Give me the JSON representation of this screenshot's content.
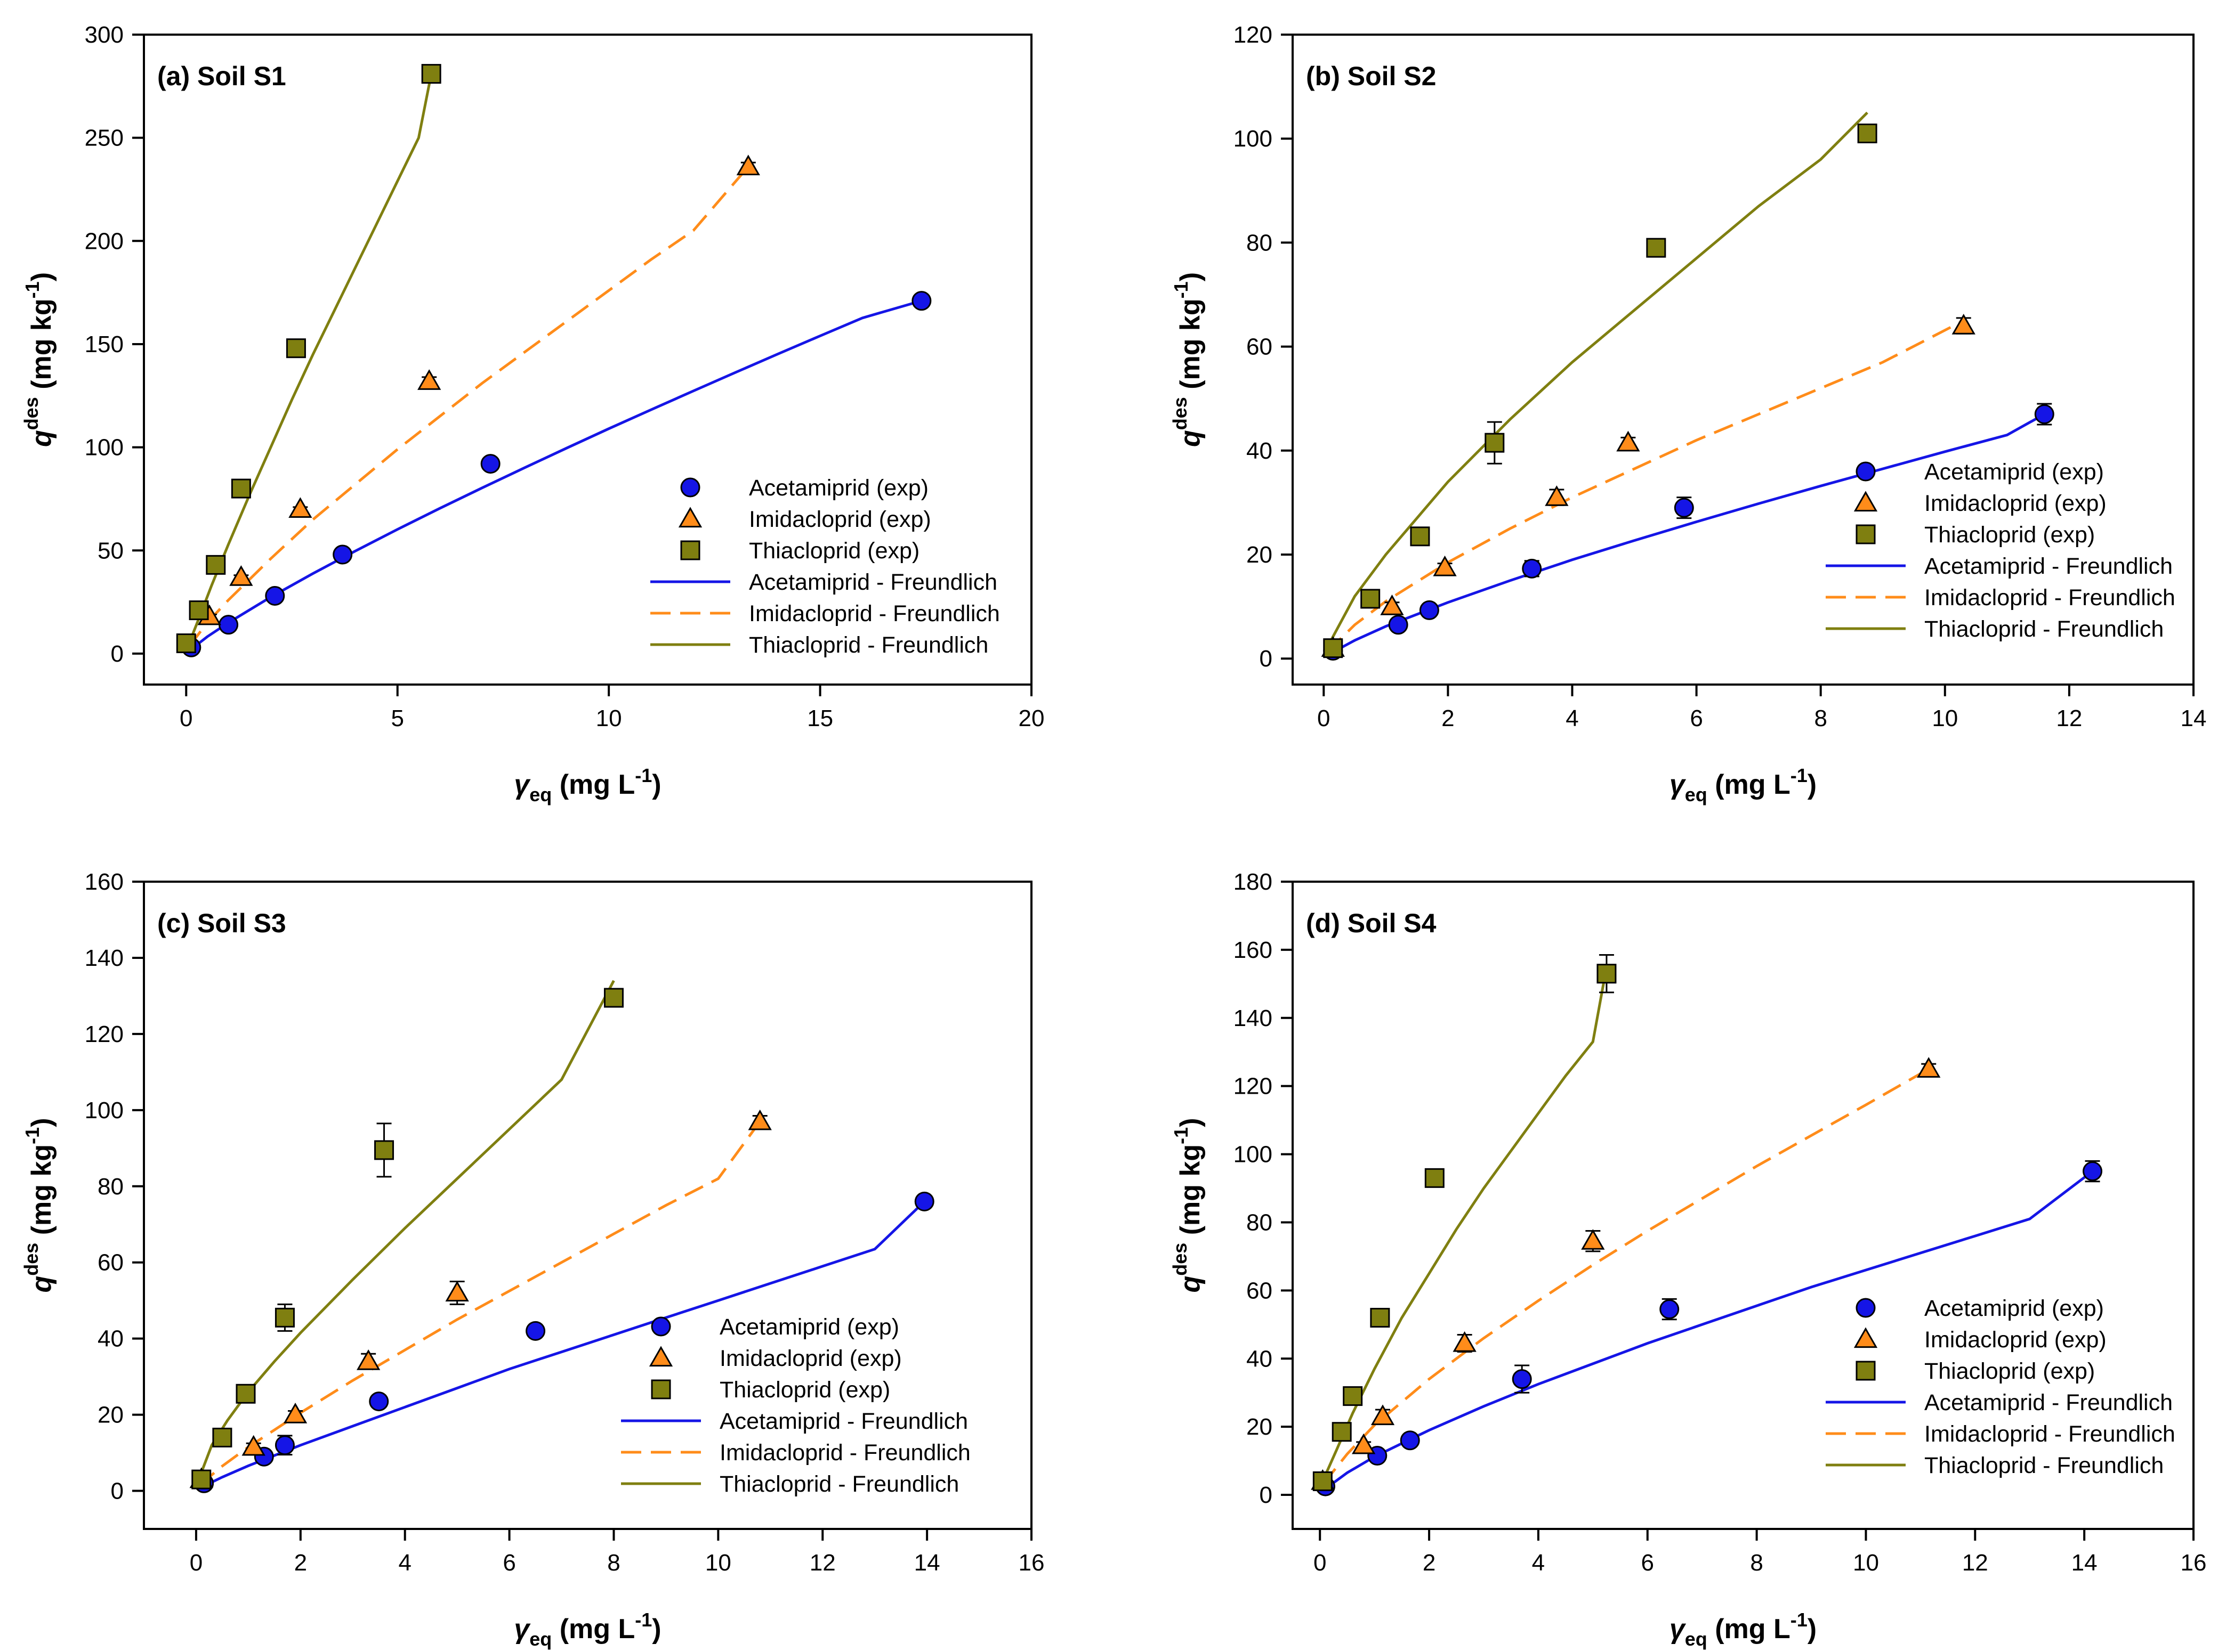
{
  "colors": {
    "acetamiprid": "#1515e6",
    "imidacloprid": "#ff8c1a",
    "thiacloprid": "#7f7f10"
  },
  "legend": {
    "labels": [
      "Acetamiprid (exp)",
      "Imidacloprid (exp)",
      "Thiacloprid (exp)",
      "Acetamiprid - Freundlich",
      "Imidacloprid  - Freundlich",
      "Thiacloprid - Freundlich"
    ],
    "labels_alt": [
      "Acetamiprid (exp)",
      "Imidacloprid (exp)",
      "Thiacloprid (exp)",
      "Acetamiprid - Freundlich",
      "Imidacloprid - Freundlich",
      "Thiacloprid - Freundlich"
    ]
  },
  "axis_titles": {
    "y_main": "q",
    "y_sup": "des",
    "y_unit": " (mg kg",
    "y_unit_sup": "-1",
    "y_close": ")",
    "x_main": "γ",
    "x_sub": "eq",
    "x_unit": " (mg L",
    "x_unit_sup": "-1",
    "x_close": ")"
  },
  "chart_data": [
    {
      "type": "scatter",
      "title": "(a) Soil S1",
      "xlabel": "γeq (mg L-1)",
      "ylabel": "qdes (mg kg-1)",
      "xlim": [
        -1,
        20
      ],
      "ylim": [
        -15,
        300
      ],
      "xticks": [
        0,
        5,
        10,
        15,
        20
      ],
      "yticks": [
        0,
        50,
        100,
        150,
        200,
        250,
        300
      ],
      "legend_position": "lower-right",
      "series": [
        {
          "name": "Acetamiprid (exp)",
          "marker": "circle",
          "x": [
            0.12,
            1.0,
            2.1,
            3.7,
            7.2,
            17.4
          ],
          "y": [
            3,
            14,
            28,
            48,
            92,
            171
          ],
          "err": [
            1,
            1,
            2,
            2,
            1,
            1
          ]
        },
        {
          "name": "Imidacloprid (exp)",
          "marker": "triangle",
          "x": [
            0.55,
            1.3,
            2.7,
            5.75,
            13.3
          ],
          "y": [
            18,
            37,
            70,
            132,
            236
          ],
          "err": [
            1,
            1,
            1,
            2,
            2
          ]
        },
        {
          "name": "Thiacloprid (exp)",
          "marker": "square",
          "x": [
            0.0,
            0.3,
            0.7,
            1.3,
            2.6,
            5.8
          ],
          "y": [
            5,
            21,
            43,
            80,
            148,
            281
          ],
          "err": [
            1,
            1,
            1,
            3,
            3,
            3
          ]
        }
      ],
      "fits": [
        {
          "name": "Acetamiprid - Freundlich",
          "style": "solid",
          "x": [
            0.05,
            0.5,
            1,
            2,
            3,
            4,
            5,
            6,
            7,
            8,
            9,
            10,
            11,
            12,
            13,
            14,
            15,
            16,
            17.4
          ],
          "y": [
            1.0,
            8.2,
            15.0,
            27.4,
            38.8,
            49.7,
            60.2,
            70.4,
            80.3,
            90.0,
            99.6,
            109.0,
            118.2,
            127.3,
            136.3,
            145.2,
            154.0,
            162.7,
            171.0
          ]
        },
        {
          "name": "Imidacloprid  - Freundlich",
          "style": "dashed",
          "x": [
            0.05,
            0.5,
            1,
            2,
            3,
            4,
            5,
            6,
            7,
            8,
            9,
            10,
            11,
            12,
            13.3
          ],
          "y": [
            3,
            15,
            26,
            46,
            65,
            82,
            99,
            115,
            131,
            146,
            161,
            176,
            191,
            205,
            236
          ]
        },
        {
          "name": "Thiacloprid - Freundlich",
          "style": "solid",
          "x": [
            0.05,
            0.3,
            0.6,
            1,
            1.5,
            2,
            2.5,
            3,
            3.5,
            4,
            4.5,
            5,
            5.5,
            5.8
          ],
          "y": [
            4,
            17,
            33,
            53,
            77,
            100,
            123,
            145,
            166,
            187,
            208,
            229,
            250,
            281
          ]
        }
      ]
    },
    {
      "type": "scatter",
      "title": "(b) Soil S2",
      "xlabel": "γeq (mg L-1)",
      "ylabel": "qdes (mg kg-1)",
      "xlim": [
        -0.5,
        14
      ],
      "ylim": [
        -5,
        120
      ],
      "xticks": [
        0,
        2,
        4,
        6,
        8,
        10,
        12,
        14
      ],
      "yticks": [
        0,
        20,
        40,
        60,
        80,
        100,
        120
      ],
      "legend_position": "lower-right",
      "series": [
        {
          "name": "Acetamiprid (exp)",
          "marker": "circle",
          "x": [
            0.15,
            1.2,
            1.7,
            3.35,
            5.8,
            11.6
          ],
          "y": [
            1.5,
            6.5,
            9.3,
            17.3,
            29,
            47
          ],
          "err": [
            0.5,
            0.5,
            0.5,
            1.5,
            2,
            2
          ]
        },
        {
          "name": "Imidacloprid (exp)",
          "marker": "triangle",
          "x": [
            0.15,
            1.1,
            1.95,
            3.75,
            4.9,
            10.3
          ],
          "y": [
            2,
            10,
            17.5,
            31,
            41.5,
            64
          ],
          "err": [
            0.5,
            0.8,
            0.8,
            1.5,
            1,
            1.5
          ]
        },
        {
          "name": "Thiacloprid (exp)",
          "marker": "square",
          "x": [
            0.15,
            0.75,
            1.55,
            2.75,
            5.35,
            8.75
          ],
          "y": [
            2,
            11.5,
            23.5,
            41.5,
            79,
            101
          ],
          "err": [
            0.5,
            0.5,
            1,
            4,
            1,
            1.5
          ]
        }
      ],
      "fits": [
        {
          "name": "Acetamiprid - Freundlich",
          "style": "solid",
          "x": [
            0.05,
            0.5,
            1,
            2,
            3,
            4,
            5,
            6,
            7,
            8,
            9,
            10,
            11,
            11.6
          ],
          "y": [
            0.6,
            3.5,
            6.2,
            10.8,
            15.0,
            19.0,
            22.7,
            26.3,
            29.8,
            33.2,
            36.5,
            39.8,
            43.0,
            47.0
          ]
        },
        {
          "name": "Imidacloprid  - Freundlich",
          "style": "dashed",
          "x": [
            0.05,
            0.5,
            1,
            2,
            3,
            4,
            5,
            6,
            7,
            8,
            9,
            10.3
          ],
          "y": [
            1.2,
            6.5,
            11,
            18.5,
            25,
            31,
            36.5,
            42,
            47,
            52,
            57,
            65
          ]
        },
        {
          "name": "Thiacloprid - Freundlich",
          "style": "solid",
          "x": [
            0.05,
            0.5,
            1,
            1.5,
            2,
            3,
            4,
            5,
            6,
            7,
            8,
            8.75
          ],
          "y": [
            2,
            12,
            20,
            27,
            34,
            46,
            57,
            67,
            77,
            87,
            96,
            105
          ]
        }
      ]
    },
    {
      "type": "scatter",
      "title": "(c) Soil S3",
      "xlabel": "γeq (mg L-1)",
      "ylabel": "qdes (mg kg-1)",
      "xlim": [
        -1,
        16
      ],
      "ylim": [
        -10,
        160
      ],
      "xticks": [
        0,
        2,
        4,
        6,
        8,
        10,
        12,
        14,
        16
      ],
      "yticks": [
        0,
        20,
        40,
        60,
        80,
        100,
        120,
        140,
        160
      ],
      "legend_position": "lower-right",
      "series": [
        {
          "name": "Acetamiprid (exp)",
          "marker": "circle",
          "x": [
            0.15,
            1.3,
            1.7,
            3.5,
            6.5,
            13.95
          ],
          "y": [
            2,
            9,
            12,
            23.5,
            42,
            76
          ],
          "err": [
            0.5,
            1,
            2.5,
            1.5,
            1,
            1.5
          ]
        },
        {
          "name": "Imidacloprid (exp)",
          "marker": "triangle",
          "x": [
            0.1,
            1.1,
            1.9,
            3.3,
            5.0,
            10.8
          ],
          "y": [
            3,
            11.5,
            20,
            34,
            52,
            97
          ],
          "err": [
            0.5,
            1,
            1,
            2,
            3,
            1.5
          ]
        },
        {
          "name": "Thiacloprid (exp)",
          "marker": "square",
          "x": [
            0.1,
            0.5,
            0.95,
            1.7,
            3.6,
            8.0
          ],
          "y": [
            3,
            14,
            25.5,
            45.5,
            89.5,
            129.5
          ],
          "err": [
            0.5,
            1,
            1,
            3.5,
            7,
            1.5
          ]
        }
      ],
      "fits": [
        {
          "name": "Acetamiprid - Freundlich",
          "style": "solid",
          "x": [
            0.05,
            0.5,
            1,
            2,
            3,
            4,
            5,
            6,
            7,
            8,
            9,
            10,
            11,
            12,
            13,
            13.95
          ],
          "y": [
            0.6,
            3.6,
            6.6,
            12,
            17,
            22,
            27,
            32,
            36.5,
            41,
            45.5,
            50,
            54.5,
            59,
            63.5,
            76
          ]
        },
        {
          "name": "Imidacloprid  - Freundlich",
          "style": "dashed",
          "x": [
            0.05,
            0.5,
            1,
            2,
            3,
            4,
            5,
            6,
            7,
            8,
            9,
            10,
            10.8
          ],
          "y": [
            1.3,
            6.5,
            11.5,
            20.5,
            29,
            37,
            45,
            52.5,
            60,
            67.5,
            75,
            82,
            97
          ]
        },
        {
          "name": "Thiacloprid - Freundlich",
          "style": "solid",
          "x": [
            0.05,
            0.3,
            0.6,
            1,
            1.5,
            2,
            3,
            4,
            5,
            6,
            7,
            8
          ],
          "y": [
            3,
            12,
            18.5,
            26,
            34,
            41.5,
            55.5,
            69,
            82,
            95,
            108,
            134
          ]
        }
      ]
    },
    {
      "type": "scatter",
      "title": "(d) Soil S4",
      "xlabel": "γeq (mg L-1)",
      "ylabel": "qdes (mg kg-1)",
      "xlim": [
        -0.5,
        16
      ],
      "ylim": [
        -10,
        180
      ],
      "xticks": [
        0,
        2,
        4,
        6,
        8,
        10,
        12,
        14,
        16
      ],
      "yticks": [
        0,
        20,
        40,
        60,
        80,
        100,
        120,
        140,
        160,
        180
      ],
      "legend_position": "lower-right",
      "series": [
        {
          "name": "Acetamiprid (exp)",
          "marker": "circle",
          "x": [
            0.1,
            1.05,
            1.65,
            3.7,
            6.4,
            14.15
          ],
          "y": [
            2.5,
            11.5,
            16,
            34,
            54.5,
            95
          ],
          "err": [
            0.5,
            1,
            1.5,
            4,
            3,
            3
          ]
        },
        {
          "name": "Imidacloprid (exp)",
          "marker": "triangle",
          "x": [
            0.05,
            0.8,
            1.15,
            2.65,
            5.0,
            11.15
          ],
          "y": [
            4,
            14.5,
            23,
            44.5,
            74.5,
            125
          ],
          "err": [
            0.5,
            1,
            2,
            2.5,
            3,
            1.5
          ]
        },
        {
          "name": "Thiacloprid (exp)",
          "marker": "square",
          "x": [
            0.05,
            0.4,
            0.6,
            1.1,
            2.1,
            5.25
          ],
          "y": [
            4,
            18.5,
            29,
            52,
            93,
            153
          ],
          "err": [
            0.5,
            1,
            1.5,
            2,
            2,
            5.5
          ]
        }
      ],
      "fits": [
        {
          "name": "Acetamiprid - Freundlich",
          "style": "solid",
          "x": [
            0.05,
            0.5,
            1,
            2,
            3,
            4,
            5,
            6,
            7,
            8,
            9,
            10,
            11,
            12,
            13,
            14.15
          ],
          "y": [
            1.2,
            6.5,
            11.2,
            19,
            26,
            32.5,
            38.5,
            44.5,
            50,
            55.5,
            61,
            66,
            71,
            76,
            81,
            95
          ]
        },
        {
          "name": "Imidacloprid  - Freundlich",
          "style": "dashed",
          "x": [
            0.05,
            0.5,
            1,
            2,
            3,
            4,
            5,
            6,
            7,
            8,
            9,
            10,
            11.15
          ],
          "y": [
            3,
            12,
            20.5,
            34,
            46,
            57,
            67.5,
            77.5,
            87,
            96.5,
            105.5,
            114.5,
            125
          ]
        },
        {
          "name": "Thiacloprid - Freundlich",
          "style": "solid",
          "x": [
            0.05,
            0.3,
            0.6,
            1,
            1.5,
            2,
            2.5,
            3,
            3.5,
            4,
            4.5,
            5,
            5.25
          ],
          "y": [
            4,
            13,
            24,
            37,
            52,
            65,
            78,
            90,
            101,
            112,
            123,
            133,
            155
          ]
        }
      ]
    }
  ]
}
